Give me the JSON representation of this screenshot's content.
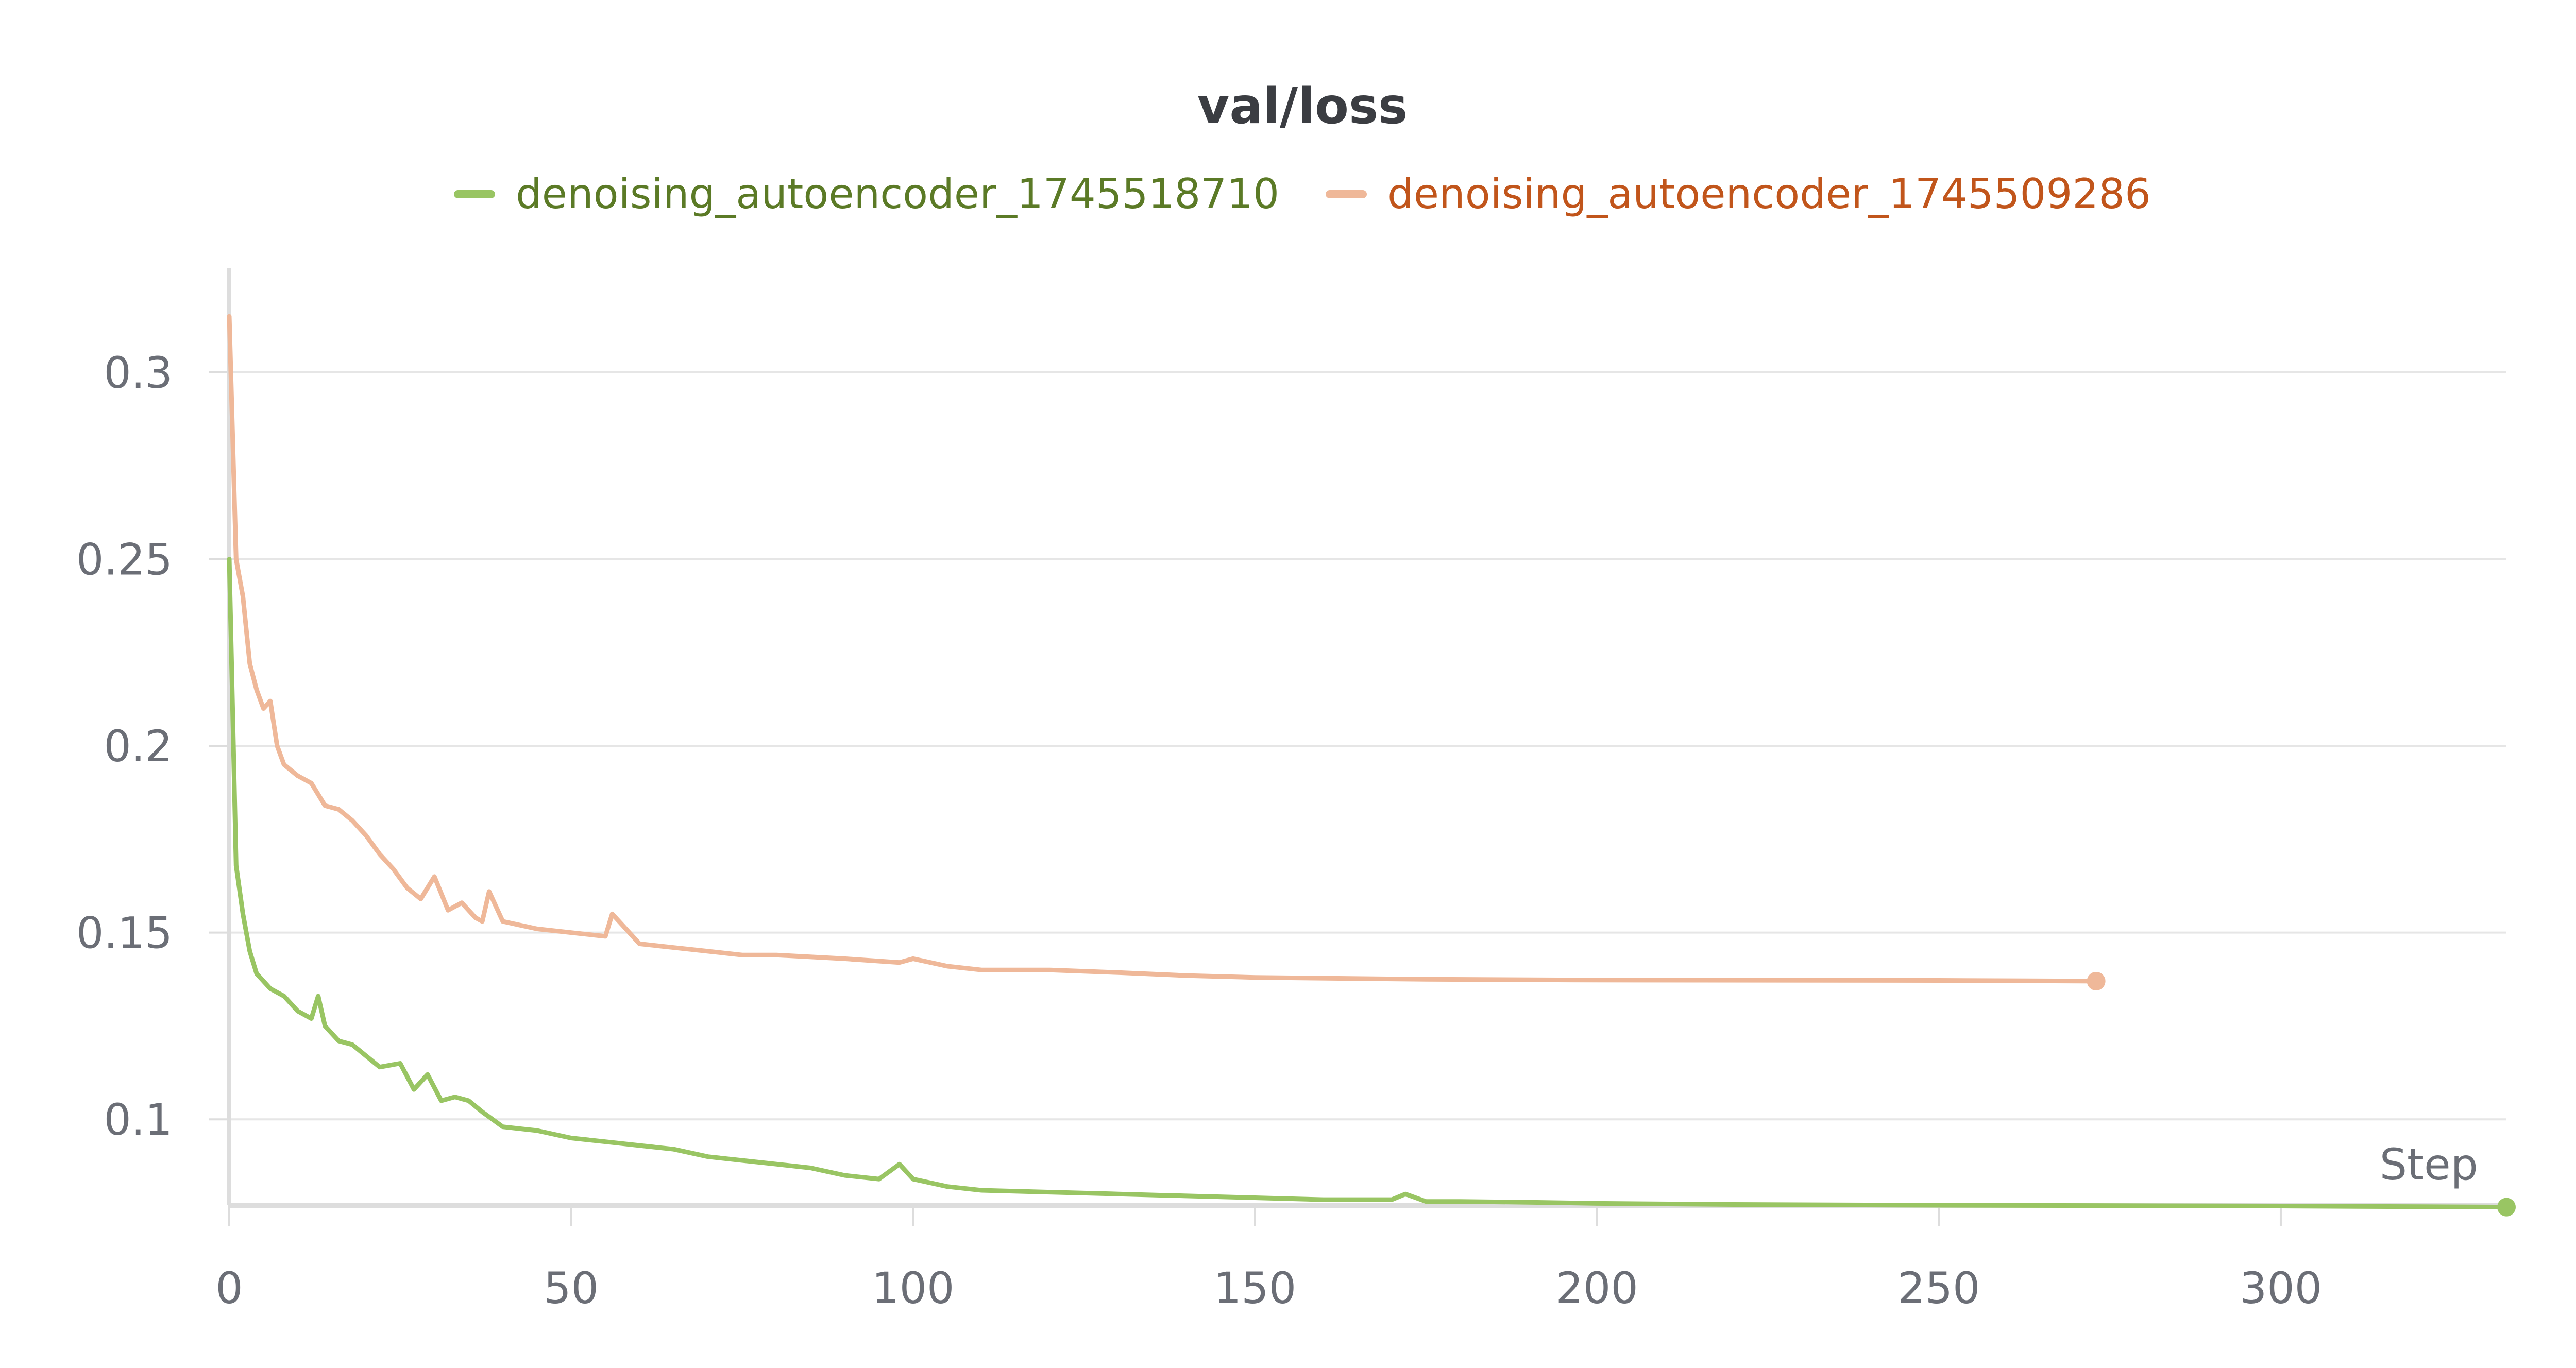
{
  "chart_data": {
    "type": "line",
    "title": "val/loss",
    "xlabel": "Step",
    "ylabel": "",
    "xlim": [
      0,
      333
    ],
    "ylim": [
      0.077,
      0.328
    ],
    "x_ticks": [
      0,
      50,
      100,
      150,
      200,
      250,
      300
    ],
    "y_ticks": [
      0.1,
      0.15,
      0.2,
      0.25,
      0.3
    ],
    "y_tick_labels": [
      "0.1",
      "0.15",
      "0.2",
      "0.25",
      "0.3"
    ],
    "grid": true,
    "legend_position": "top-center",
    "series": [
      {
        "name": "denoising_autoencoder_1745518710",
        "color": "#99c563",
        "label_color": "#5b7a26",
        "x": [
          0,
          1,
          2,
          3,
          4,
          5,
          6,
          8,
          10,
          12,
          13,
          14,
          16,
          18,
          20,
          22,
          25,
          27,
          29,
          31,
          33,
          35,
          37,
          40,
          45,
          50,
          55,
          60,
          65,
          70,
          75,
          80,
          85,
          90,
          95,
          98,
          100,
          105,
          110,
          120,
          130,
          140,
          150,
          160,
          170,
          172,
          175,
          180,
          190,
          200,
          220,
          250,
          300,
          333
        ],
        "values": [
          0.25,
          0.168,
          0.155,
          0.145,
          0.139,
          0.137,
          0.135,
          0.133,
          0.129,
          0.127,
          0.133,
          0.125,
          0.121,
          0.12,
          0.117,
          0.114,
          0.115,
          0.108,
          0.112,
          0.105,
          0.106,
          0.105,
          0.102,
          0.098,
          0.097,
          0.095,
          0.094,
          0.093,
          0.092,
          0.09,
          0.089,
          0.088,
          0.087,
          0.085,
          0.084,
          0.088,
          0.084,
          0.082,
          0.081,
          0.0805,
          0.08,
          0.0795,
          0.079,
          0.0785,
          0.0785,
          0.08,
          0.078,
          0.078,
          0.0778,
          0.0775,
          0.0772,
          0.077,
          0.0768,
          0.0765
        ]
      },
      {
        "name": "denoising_autoencoder_1745509286",
        "color": "#efb899",
        "label_color": "#c1551b",
        "x": [
          0,
          1,
          2,
          3,
          4,
          5,
          6,
          7,
          8,
          10,
          12,
          13,
          14,
          16,
          18,
          20,
          22,
          24,
          26,
          28,
          30,
          32,
          34,
          36,
          37,
          38,
          40,
          45,
          50,
          55,
          56,
          60,
          65,
          70,
          75,
          80,
          90,
          98,
          100,
          105,
          110,
          120,
          130,
          140,
          150,
          175,
          200,
          250,
          273
        ],
        "values": [
          0.315,
          0.25,
          0.24,
          0.222,
          0.215,
          0.21,
          0.212,
          0.2,
          0.195,
          0.192,
          0.19,
          0.187,
          0.184,
          0.183,
          0.18,
          0.176,
          0.171,
          0.167,
          0.162,
          0.159,
          0.165,
          0.156,
          0.158,
          0.154,
          0.153,
          0.161,
          0.153,
          0.151,
          0.15,
          0.149,
          0.155,
          0.147,
          0.146,
          0.145,
          0.144,
          0.144,
          0.143,
          0.142,
          0.143,
          0.141,
          0.14,
          0.14,
          0.1393,
          0.1385,
          0.138,
          0.1375,
          0.1373,
          0.1372,
          0.137
        ]
      }
    ]
  }
}
